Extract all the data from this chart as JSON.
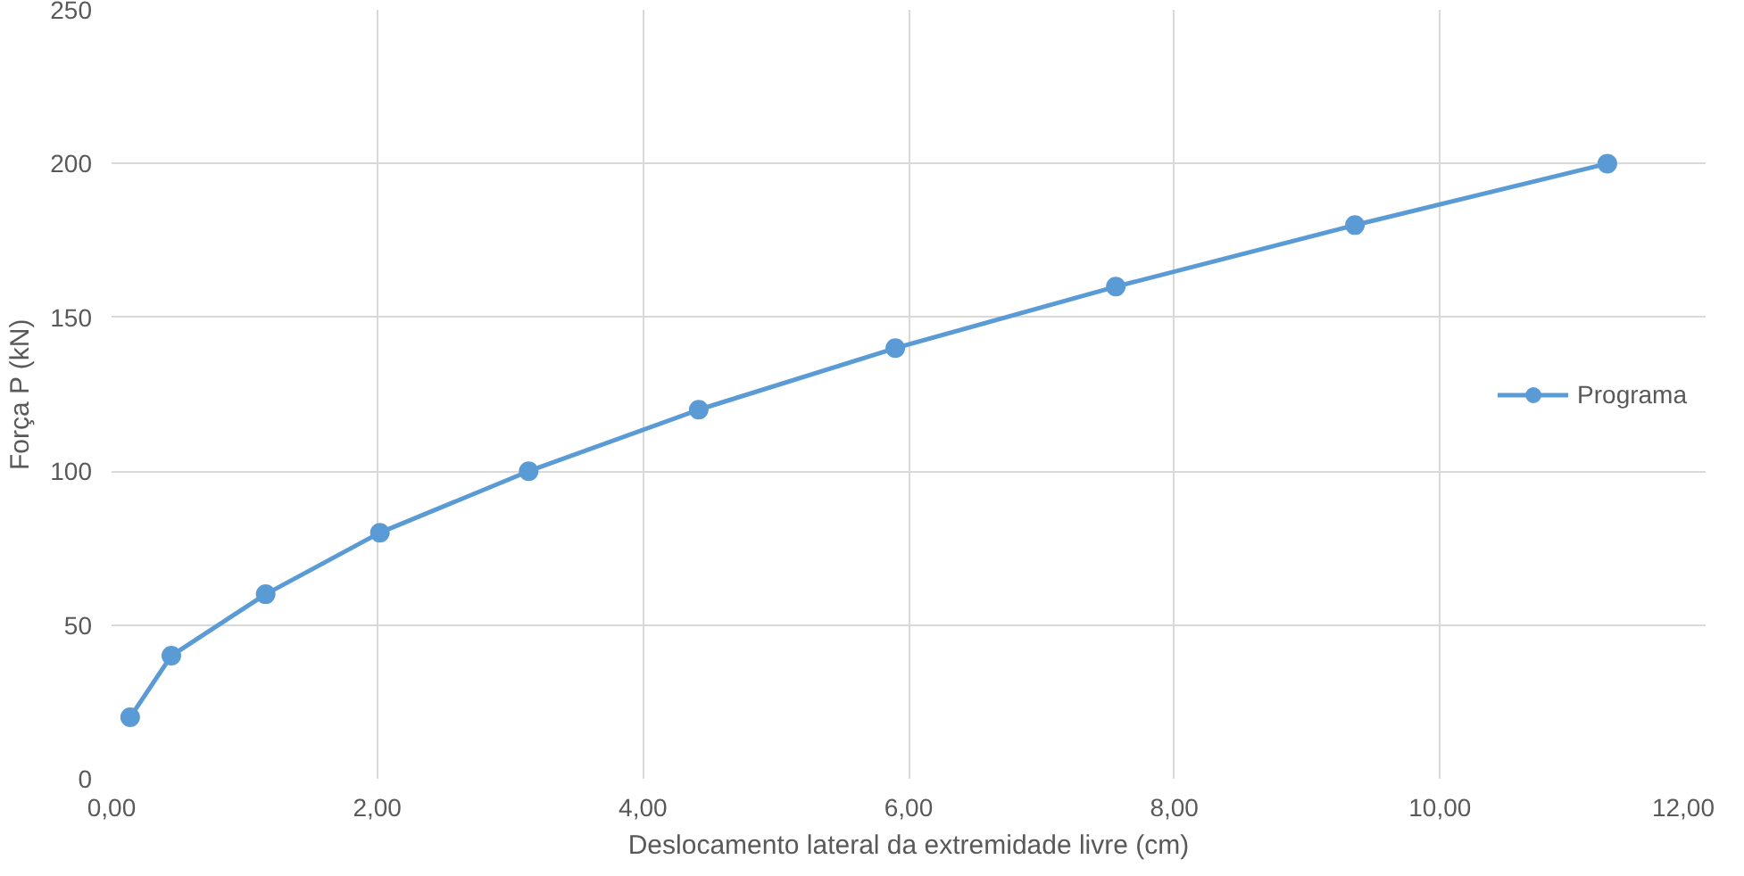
{
  "chart_data": {
    "type": "line",
    "xlabel": "Deslocamento lateral da extremidade livre (cm)",
    "ylabel": "Força P (kN)",
    "series": [
      {
        "name": "Programa",
        "color": "#5b9bd5",
        "x": [
          0.14,
          0.45,
          1.16,
          2.02,
          3.14,
          4.42,
          5.9,
          7.56,
          9.36,
          11.26
        ],
        "values": [
          20,
          40,
          60,
          80,
          100,
          120,
          140,
          160,
          180,
          200
        ]
      }
    ],
    "xlim": [
      0,
      12
    ],
    "xticks": [
      {
        "value": 0,
        "label": "0,00"
      },
      {
        "value": 2,
        "label": "2,00"
      },
      {
        "value": 4,
        "label": "4,00"
      },
      {
        "value": 6,
        "label": "6,00"
      },
      {
        "value": 8,
        "label": "8,00"
      },
      {
        "value": 10,
        "label": "10,00"
      },
      {
        "value": 12,
        "label": "12,00"
      }
    ],
    "ylim": [
      0,
      250
    ],
    "yticks": [
      0,
      50,
      100,
      150,
      200,
      250
    ],
    "grid": true,
    "legend": "right",
    "marker": "circle",
    "line_style": "solid"
  }
}
